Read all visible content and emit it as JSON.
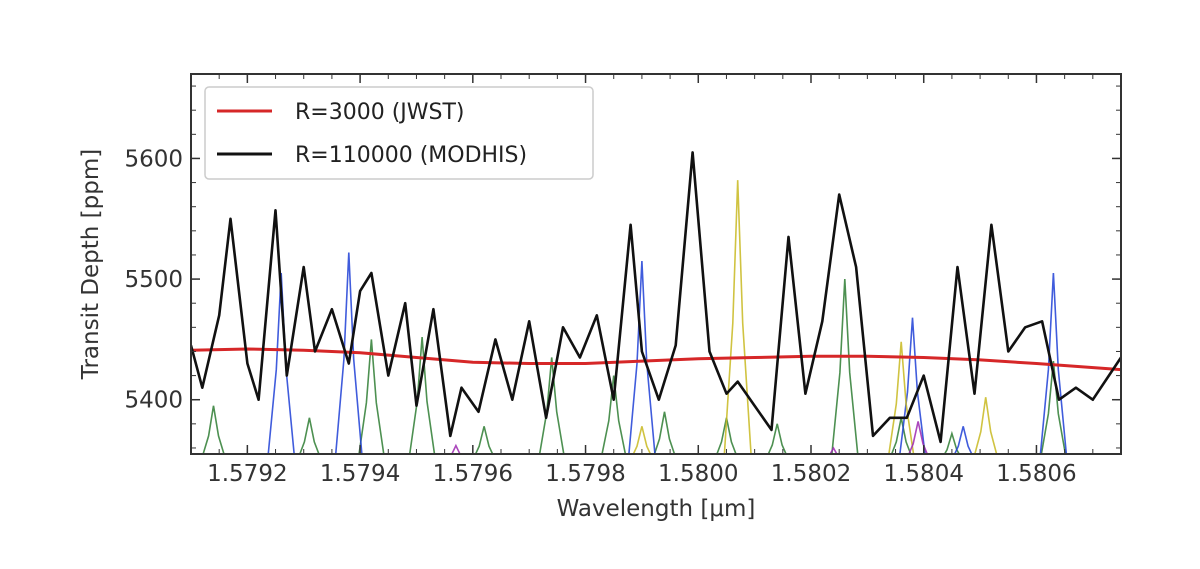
{
  "chart_data": {
    "type": "line",
    "xlabel": "Wavelength [μm]",
    "ylabel": "Transit Depth [ppm]",
    "xlim": [
      1.5791,
      1.58075
    ],
    "ylim": [
      5355,
      5670
    ],
    "x_ticks": [
      1.5792,
      1.5794,
      1.5796,
      1.5798,
      1.58,
      1.5802,
      1.5804,
      1.5806
    ],
    "x_tick_labels": [
      "1.5792",
      "1.5794",
      "1.5796",
      "1.5798",
      "1.5800",
      "1.5802",
      "1.5804",
      "1.5806"
    ],
    "y_ticks": [
      5400,
      5500,
      5600
    ],
    "y_tick_labels": [
      "5400",
      "5500",
      "5600"
    ],
    "grid": false,
    "legend_position": "top-left",
    "legend": [
      {
        "label": "R=3000 (JWST)",
        "color": "#d62728"
      },
      {
        "label": "R=110000 (MODHIS)",
        "color": "#111111"
      }
    ],
    "series": [
      {
        "name": "R=3000 (JWST)",
        "color": "#d62728",
        "x": [
          1.5791,
          1.5792,
          1.5793,
          1.5794,
          1.5795,
          1.5796,
          1.5797,
          1.5798,
          1.5799,
          1.58,
          1.5801,
          1.5802,
          1.5803,
          1.5804,
          1.5805,
          1.5806,
          1.58075
        ],
        "y": [
          5441,
          5442,
          5441,
          5439,
          5435,
          5431,
          5430,
          5430,
          5432,
          5434,
          5435,
          5436,
          5436,
          5435,
          5433,
          5430,
          5425
        ]
      },
      {
        "name": "R=110000 (MODHIS)",
        "color": "#111111",
        "x": [
          1.5791,
          1.57912,
          1.57915,
          1.57917,
          1.5792,
          1.57922,
          1.57925,
          1.57927,
          1.5793,
          1.57932,
          1.57935,
          1.57938,
          1.5794,
          1.57942,
          1.57945,
          1.57948,
          1.5795,
          1.57953,
          1.57956,
          1.57958,
          1.57961,
          1.57964,
          1.57967,
          1.5797,
          1.57973,
          1.57976,
          1.57979,
          1.57982,
          1.57985,
          1.57988,
          1.5799,
          1.57993,
          1.57996,
          1.57999,
          1.58002,
          1.58005,
          1.58007,
          1.5801,
          1.58013,
          1.58016,
          1.58019,
          1.58022,
          1.58025,
          1.58028,
          1.58031,
          1.58034,
          1.58037,
          1.5804,
          1.58043,
          1.58046,
          1.58049,
          1.58052,
          1.58055,
          1.58058,
          1.58061,
          1.58064,
          1.58067,
          1.5807,
          1.58075
        ],
        "y": [
          5445,
          5410,
          5470,
          5550,
          5430,
          5400,
          5557,
          5420,
          5510,
          5440,
          5475,
          5430,
          5490,
          5505,
          5420,
          5480,
          5395,
          5475,
          5370,
          5410,
          5390,
          5450,
          5400,
          5465,
          5385,
          5460,
          5435,
          5470,
          5400,
          5545,
          5440,
          5400,
          5445,
          5605,
          5440,
          5405,
          5415,
          5395,
          5375,
          5535,
          5405,
          5465,
          5570,
          5510,
          5370,
          5385,
          5385,
          5420,
          5365,
          5510,
          5405,
          5545,
          5440,
          5460,
          5465,
          5400,
          5410,
          5400,
          5435
        ]
      }
    ],
    "background_lines": [
      {
        "color": "#2e7d32",
        "peaks_x": [
          1.57914,
          1.57931,
          1.57942,
          1.57951,
          1.57962,
          1.57974,
          1.57985,
          1.57994,
          1.58005,
          1.58014,
          1.58026,
          1.58036,
          1.58045,
          1.58063
        ],
        "peaks_y": [
          5395,
          5385,
          5450,
          5452,
          5378,
          5435,
          5420,
          5390,
          5385,
          5380,
          5500,
          5385,
          5372,
          5432
        ]
      },
      {
        "color": "#1f3fd6",
        "peaks_x": [
          1.57926,
          1.57938,
          1.5799,
          1.58038,
          1.58047,
          1.58063
        ],
        "peaks_y": [
          5505,
          5522,
          5515,
          5468,
          5378,
          5505
        ]
      },
      {
        "color": "#c8b820",
        "peaks_x": [
          1.5799,
          1.58007,
          1.58036,
          1.58051
        ],
        "peaks_y": [
          5378,
          5582,
          5448,
          5402
        ]
      },
      {
        "color": "#9c27b0",
        "peaks_x": [
          1.57957,
          1.58024,
          1.58039
        ],
        "peaks_y": [
          5362,
          5360,
          5382
        ]
      }
    ]
  }
}
